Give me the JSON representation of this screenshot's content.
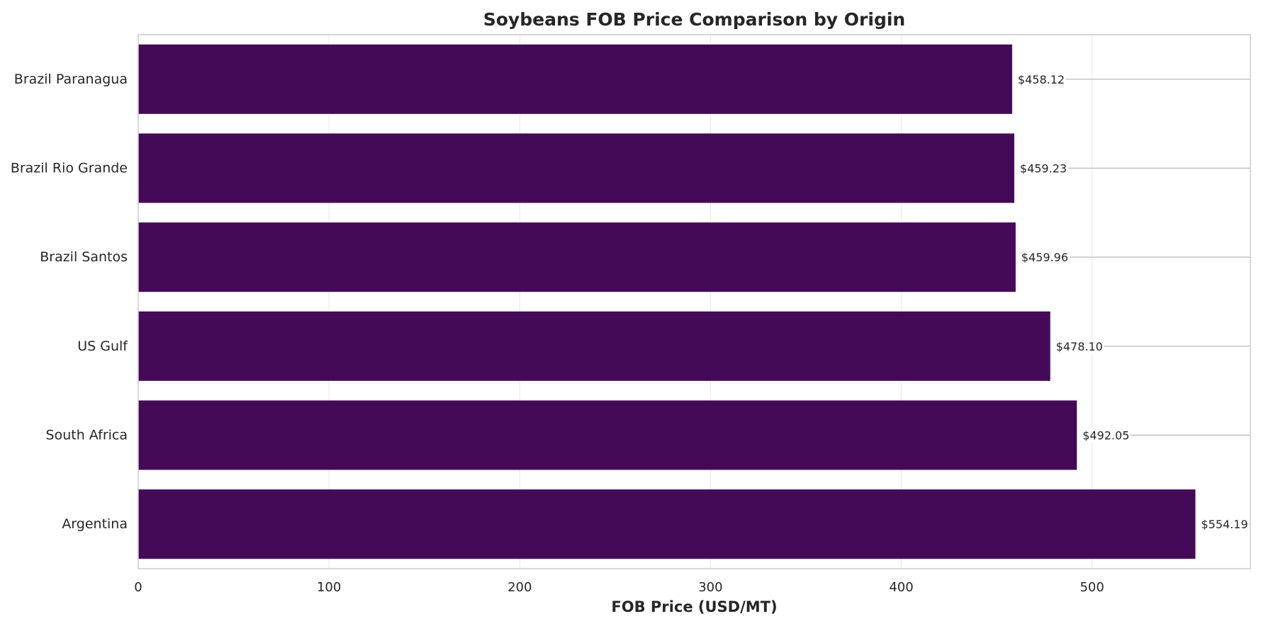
{
  "chart_data": {
    "type": "bar",
    "orientation": "horizontal",
    "title": "Soybeans FOB Price Comparison by Origin",
    "xlabel": "FOB Price (USD/MT)",
    "ylabel": "",
    "categories": [
      "Brazil Paranagua",
      "Brazil Rio Grande",
      "Brazil Santos",
      "US Gulf",
      "South Africa",
      "Argentina"
    ],
    "values": [
      458.12,
      459.23,
      459.96,
      478.1,
      492.05,
      554.19
    ],
    "data_labels": [
      "$458.12",
      "$459.23",
      "$459.96",
      "$478.10",
      "$492.05",
      "$554.19"
    ],
    "xlim": [
      0,
      583
    ],
    "xticks": [
      0,
      100,
      200,
      300,
      400,
      500
    ],
    "grid": true,
    "legend": "none",
    "bar_color": "#440a57",
    "grid_color": "#ebebeb",
    "label_line_color": "#bfbfbf",
    "frame_color": "#cccccc"
  }
}
